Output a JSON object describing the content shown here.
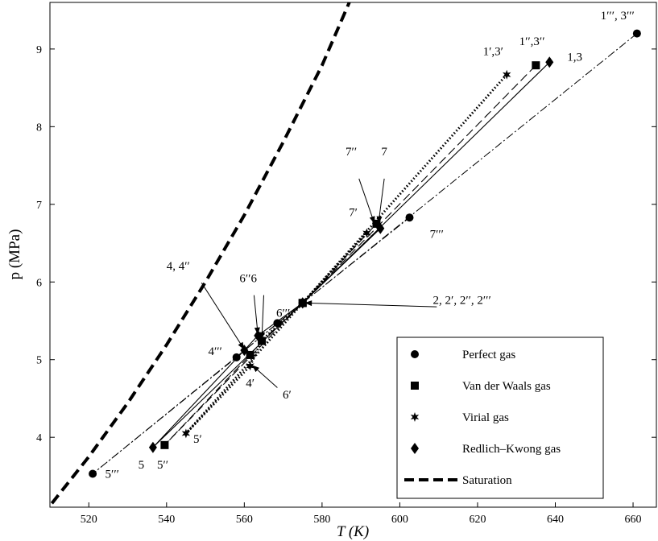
{
  "chart_data": {
    "type": "scatter",
    "xlabel": "T (K)",
    "ylabel": "p (MPa)",
    "xlim": [
      510,
      666
    ],
    "ylim": [
      3.1,
      9.6
    ],
    "xticks": [
      520,
      540,
      560,
      580,
      600,
      620,
      640,
      660
    ],
    "yticks": [
      4,
      5,
      6,
      7,
      8,
      9
    ],
    "legend_position": "bottom-right",
    "legend": [
      {
        "name": "Perfect gas",
        "marker": "circle"
      },
      {
        "name": "Van der Waals gas",
        "marker": "square"
      },
      {
        "name": "Virial gas",
        "marker": "star"
      },
      {
        "name": "Redlich–Kwong gas",
        "marker": "diamond"
      },
      {
        "name": "Saturation",
        "marker": "line-dashed"
      }
    ],
    "series": [
      {
        "name": "Perfect gas",
        "marker": "circle",
        "line": "dashdot",
        "points": [
          [
            661,
            9.2
          ],
          [
            575,
            5.73
          ],
          [
            521,
            3.53
          ],
          [
            558,
            5.03
          ],
          [
            568.5,
            5.47
          ],
          [
            575,
            5.73
          ],
          [
            602.5,
            6.83
          ]
        ]
      },
      {
        "name": "Van der Waals gas",
        "marker": "square",
        "line": "dashed",
        "points": [
          [
            635,
            8.79
          ],
          [
            575,
            5.73
          ],
          [
            539.5,
            3.9
          ],
          [
            561.5,
            5.06
          ],
          [
            564.5,
            5.24
          ],
          [
            575,
            5.73
          ],
          [
            594,
            6.75
          ]
        ]
      },
      {
        "name": "Virial gas",
        "marker": "star",
        "line": "dotted",
        "points": [
          [
            627.5,
            8.67
          ],
          [
            575,
            5.73
          ],
          [
            545,
            4.05
          ],
          [
            561.5,
            4.92
          ],
          [
            564.5,
            5.25
          ],
          [
            575,
            5.73
          ],
          [
            591.5,
            6.63
          ]
        ]
      },
      {
        "name": "Redlich–Kwong gas",
        "marker": "diamond",
        "line": "solid",
        "points": [
          [
            638.5,
            8.83
          ],
          [
            575,
            5.73
          ],
          [
            536.5,
            3.87
          ],
          [
            560,
            5.12
          ],
          [
            563.5,
            5.31
          ],
          [
            575,
            5.73
          ],
          [
            595,
            6.69
          ]
        ]
      }
    ],
    "saturation": [
      [
        510.5,
        3.15
      ],
      [
        520,
        3.75
      ],
      [
        530,
        4.44
      ],
      [
        540,
        5.19
      ],
      [
        550,
        6.0
      ],
      [
        560,
        6.86
      ],
      [
        570,
        7.8
      ],
      [
        580,
        8.79
      ],
      [
        587,
        9.6
      ]
    ],
    "annotations": [
      {
        "text": "1′′′, 3′′′",
        "x": 656,
        "y": 9.38
      },
      {
        "text": "1′′,3′′",
        "x": 634,
        "y": 9.05
      },
      {
        "text": "1′,3′",
        "x": 624,
        "y": 8.92
      },
      {
        "text": "1,3",
        "x": 645,
        "y": 8.85
      },
      {
        "text": "7′′",
        "x": 587.5,
        "y": 7.63
      },
      {
        "text": "7",
        "x": 596,
        "y": 7.63
      },
      {
        "text": "7′",
        "x": 588,
        "y": 6.85
      },
      {
        "text": "7′′′",
        "x": 609.5,
        "y": 6.57
      },
      {
        "text": "4, 4′′",
        "x": 543,
        "y": 6.16
      },
      {
        "text": "6′′6",
        "x": 561,
        "y": 6.0
      },
      {
        "text": "6′′′",
        "x": 570,
        "y": 5.55
      },
      {
        "text": "2, 2′, 2′′, 2′′′",
        "x": 616,
        "y": 5.72
      },
      {
        "text": "4′′′",
        "x": 552.5,
        "y": 5.06
      },
      {
        "text": "4′",
        "x": 561.5,
        "y": 4.65
      },
      {
        "text": "6′",
        "x": 571,
        "y": 4.5
      },
      {
        "text": "5",
        "x": 533.5,
        "y": 3.6
      },
      {
        "text": "5′′",
        "x": 539,
        "y": 3.6
      },
      {
        "text": "5′",
        "x": 548,
        "y": 3.93
      },
      {
        "text": "5′′′",
        "x": 526,
        "y": 3.48
      }
    ],
    "arrows": [
      {
        "from": [
          589.5,
          7.33
        ],
        "to": [
          593.5,
          6.75
        ]
      },
      {
        "from": [
          596,
          7.33
        ],
        "to": [
          594.5,
          6.75
        ]
      },
      {
        "from": [
          549,
          5.99
        ],
        "to": [
          560,
          5.13
        ]
      },
      {
        "from": [
          562.5,
          5.83
        ],
        "to": [
          563.5,
          5.32
        ]
      },
      {
        "from": [
          565,
          5.83
        ],
        "to": [
          564.5,
          5.26
        ]
      },
      {
        "from": [
          609.5,
          5.68
        ],
        "to": [
          575.5,
          5.73
        ]
      },
      {
        "from": [
          568.5,
          4.64
        ],
        "to": [
          562,
          4.93
        ]
      }
    ]
  }
}
